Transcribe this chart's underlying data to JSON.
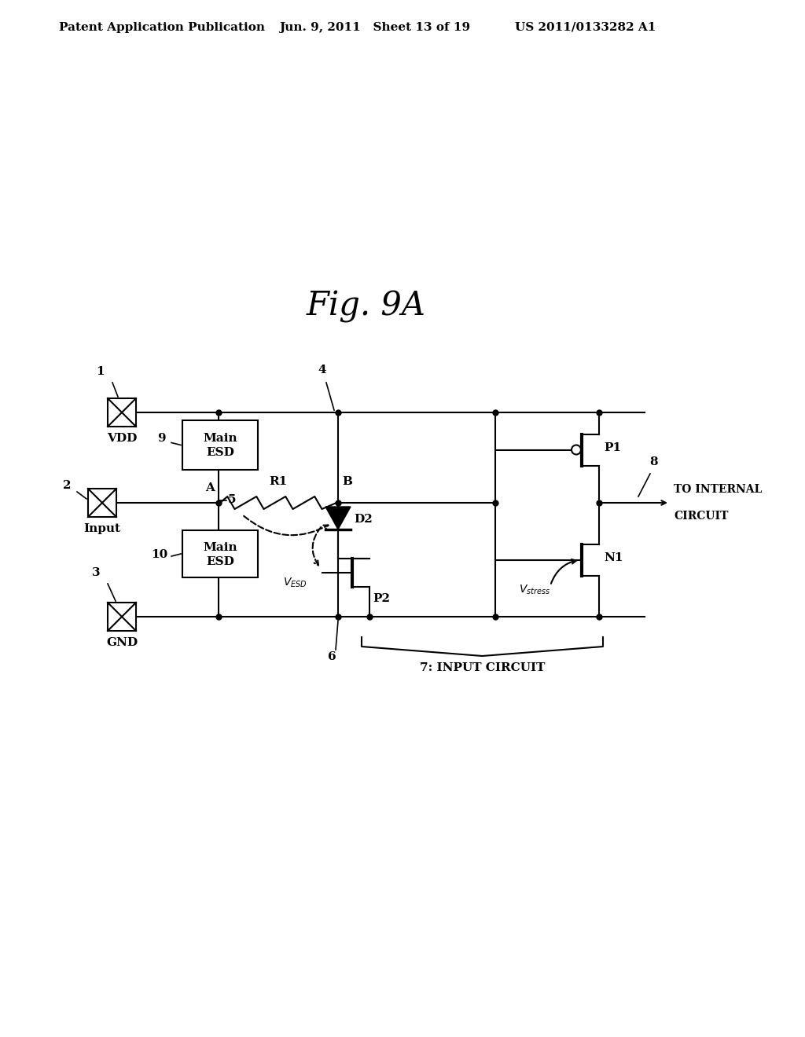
{
  "title": "Fig. 9A",
  "header_left": "Patent Application Publication",
  "header_mid": "Jun. 9, 2011   Sheet 13 of 19",
  "header_right": "US 2011/0133282 A1",
  "bg_color": "#ffffff",
  "lw": 1.5,
  "fs_header": 11,
  "fs_title": 30,
  "fs_label": 11,
  "fs_small": 10
}
